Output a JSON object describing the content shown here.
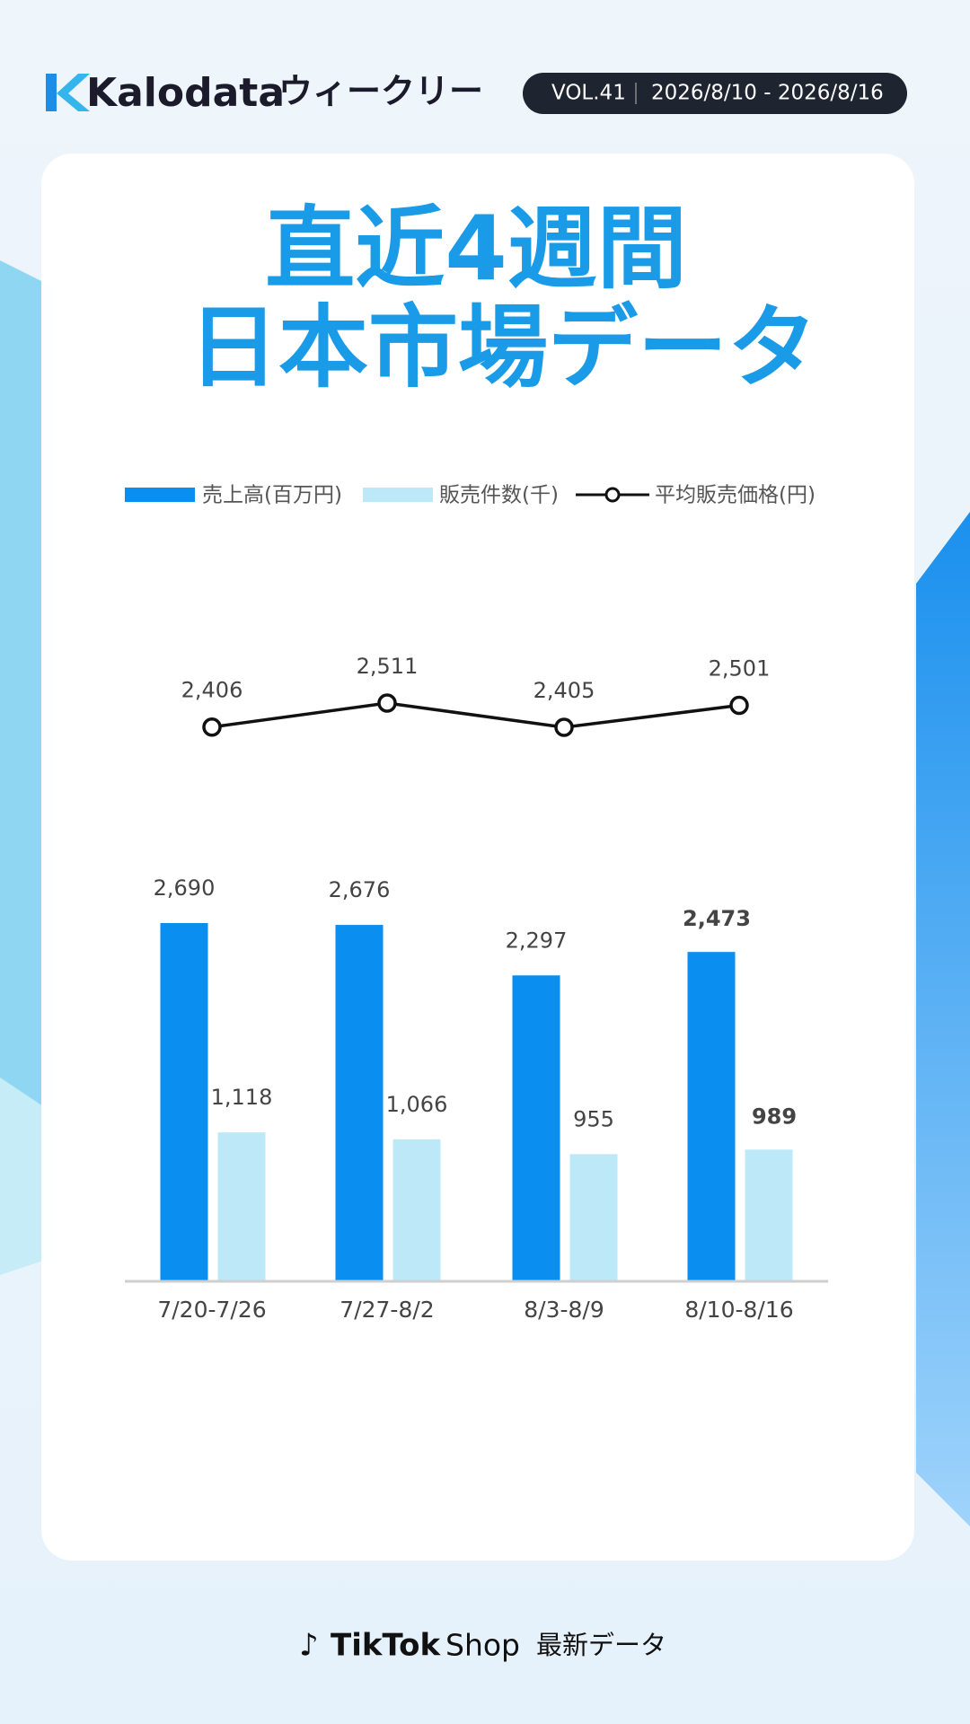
{
  "header": {
    "brand": "Kalodata",
    "subtitle": "ウィークリー",
    "vol": "VOL.41",
    "date_range": "2026/8/10 - 2026/8/16"
  },
  "chart_data": {
    "type": "bar",
    "title": "直近4週間",
    "subtitle": "日本市場データ",
    "categories": [
      "7/20-7/26",
      "7/27-8/2",
      "8/3-8/9",
      "8/10-8/16"
    ],
    "series": [
      {
        "name": "売上高(百万円)",
        "color": "#0a8ef0",
        "values": [
          2690,
          2676,
          2297,
          2473
        ],
        "value_labels": [
          "2,690",
          "2,676",
          "2,297",
          "2,473"
        ]
      },
      {
        "name": "販売件数(千)",
        "color": "#bde8f7",
        "values": [
          1118,
          1066,
          955,
          989
        ],
        "value_labels": [
          "1,118",
          "1,066",
          "955",
          "989"
        ]
      },
      {
        "name": "平均販売価格(円)",
        "type": "line",
        "color": "#111111",
        "values": [
          2406,
          2511,
          2405,
          2501
        ],
        "value_labels": [
          "2,406",
          "2,511",
          "2,405",
          "2,501"
        ]
      }
    ]
  },
  "footer": {
    "tiktok": "TikTok",
    "shop": "Shop",
    "label": "最新データ"
  }
}
